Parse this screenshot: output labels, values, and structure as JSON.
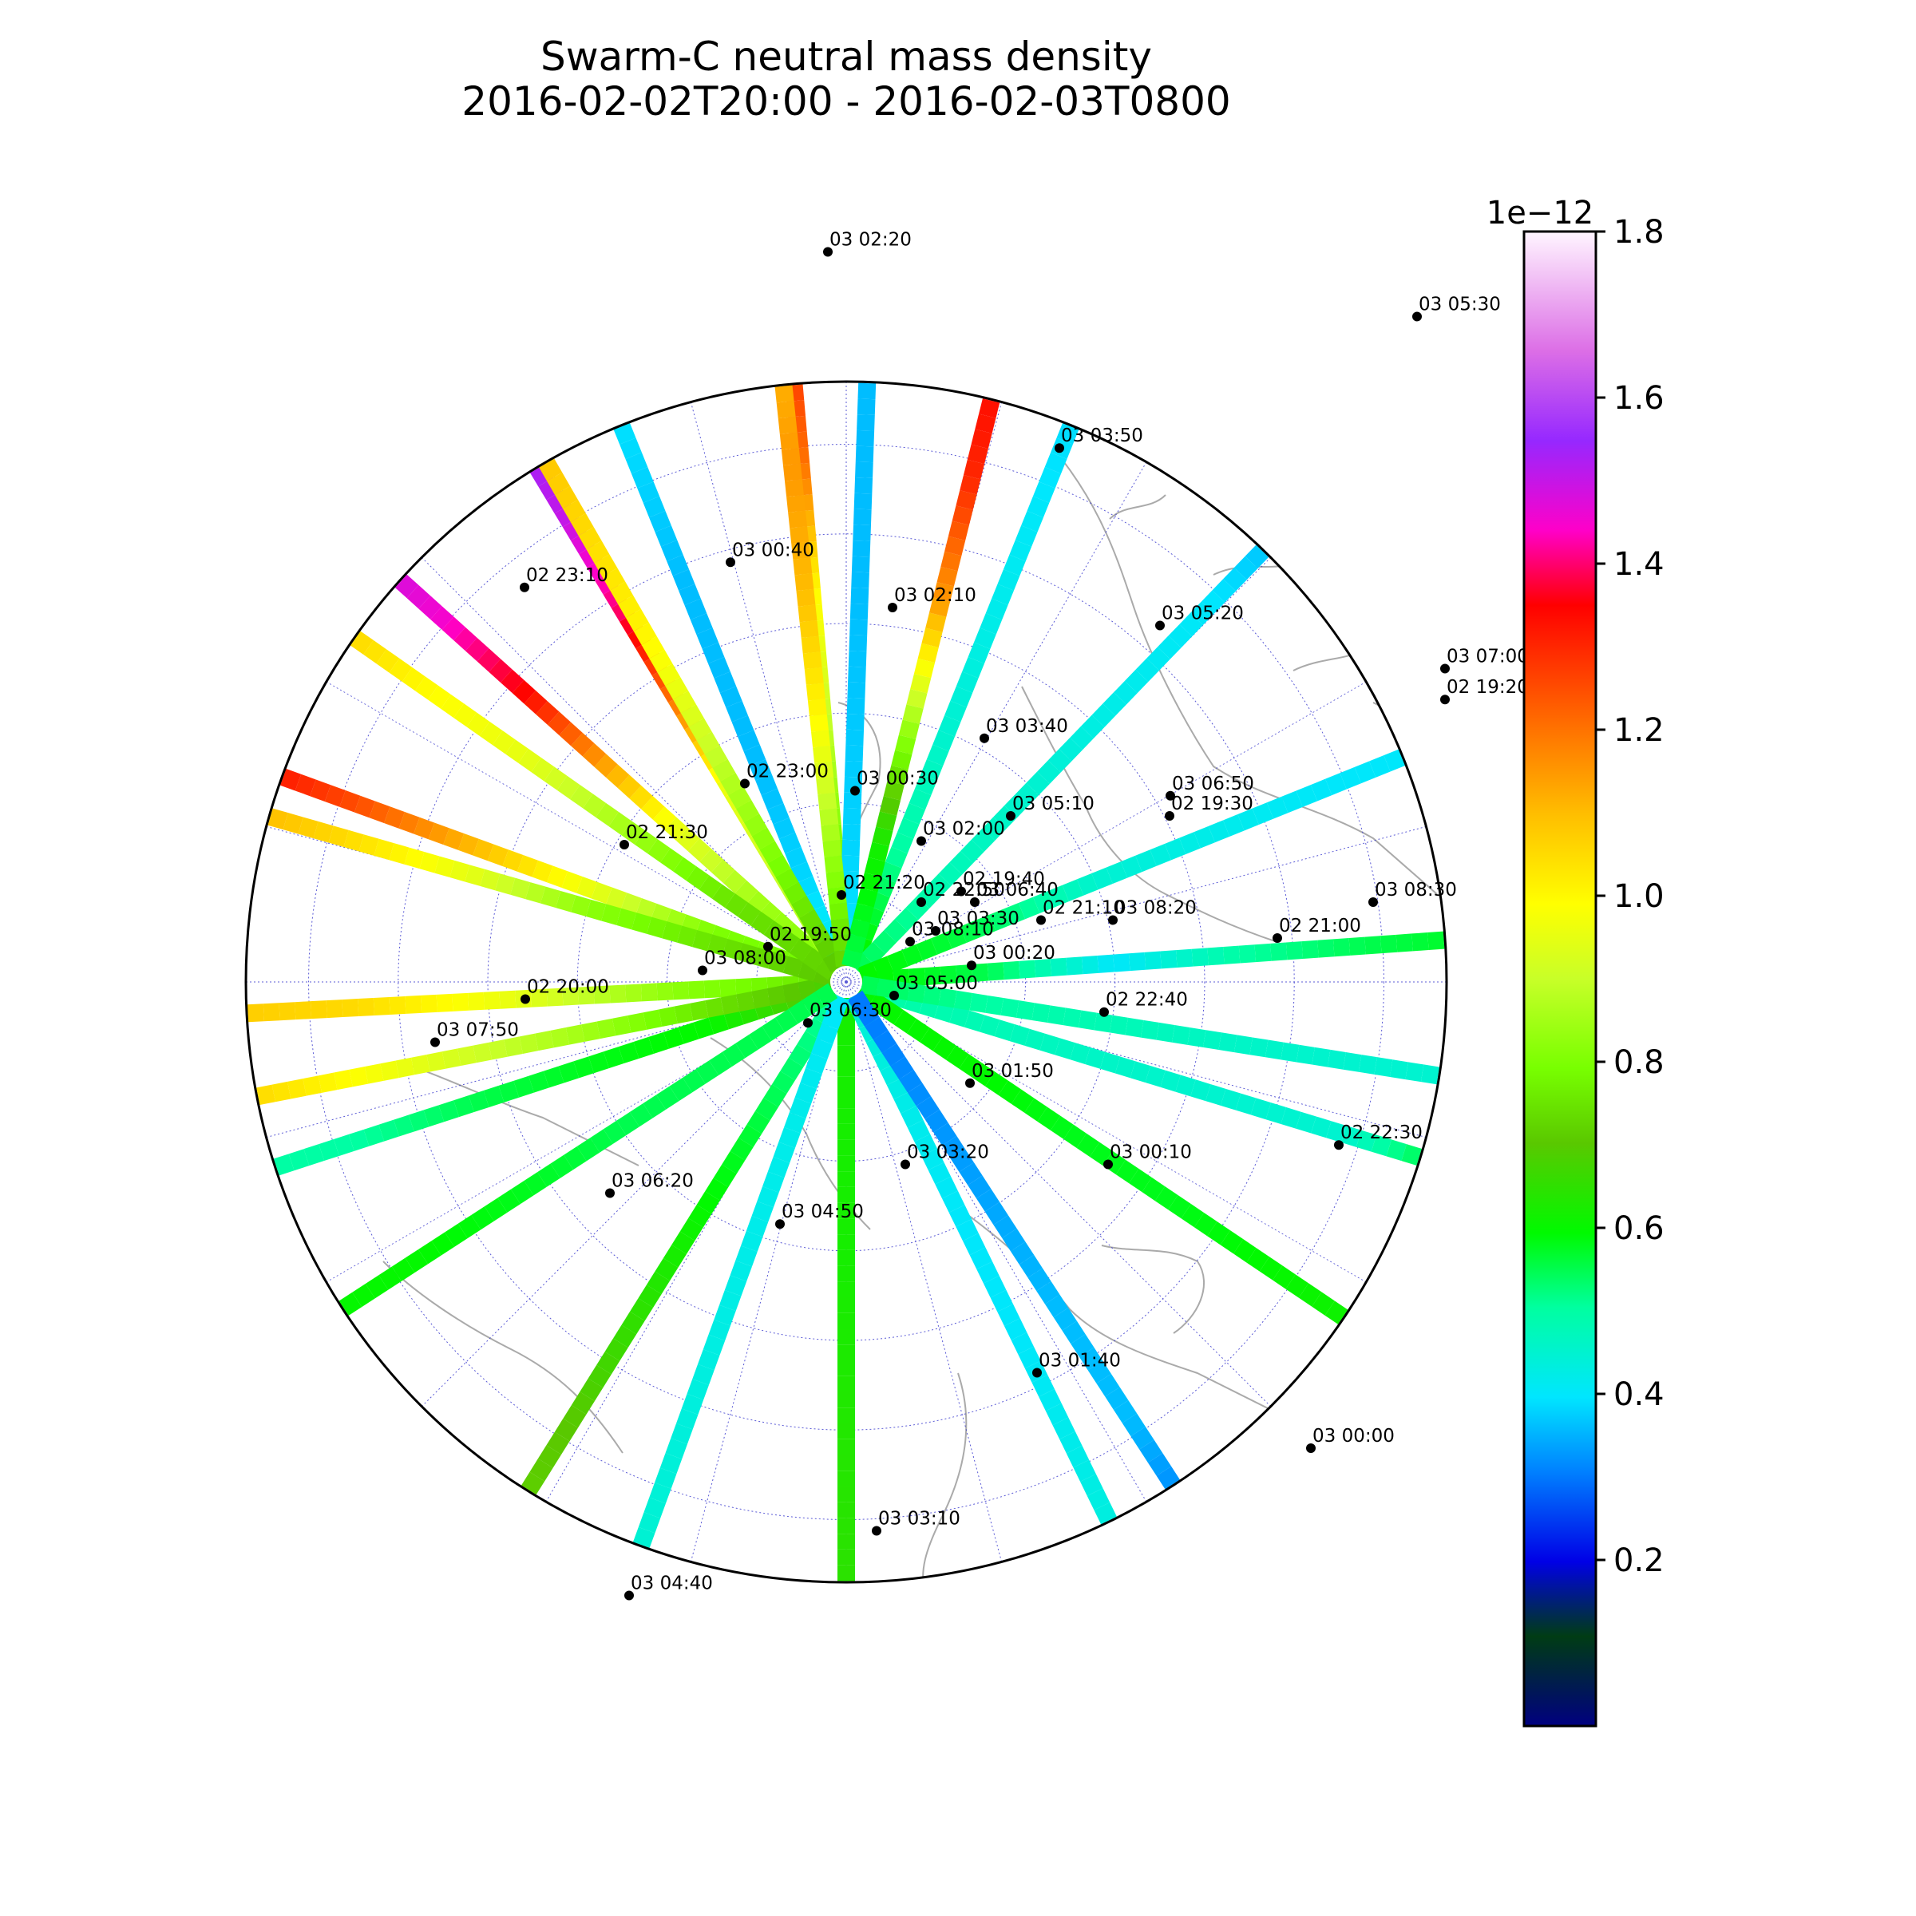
{
  "title_line1": "Swarm-C neutral mass density",
  "title_line2": "2016-02-02T20:00 - 2016-02-03T0800",
  "chart_data": {
    "type": "scatter",
    "projection": "north polar stereographic",
    "colormap": "gist_ncar",
    "color_range": [
      0.0,
      1.8
    ],
    "colorbar_multiplier": "1e−12",
    "colorbar_ticks": [
      "0.2",
      "0.4",
      "0.6",
      "0.8",
      "1.0",
      "1.2",
      "1.4",
      "1.6",
      "1.8"
    ],
    "colorbar_tick_values": [
      0.2,
      0.4,
      0.6,
      0.8,
      1.0,
      1.2,
      1.4,
      1.6,
      1.8
    ],
    "grid": true,
    "coastlines": true,
    "passes": [
      {
        "angle": -93,
        "range": [
          0.0,
          1.0
        ],
        "density": [
          0.75,
          0.82,
          0.95,
          1.05,
          1.08
        ]
      },
      {
        "angle": -70,
        "range": [
          0.0,
          1.0
        ],
        "density": [
          0.78,
          0.8,
          0.95,
          1.1,
          1.25,
          1.35
        ]
      },
      {
        "angle": -48,
        "range": [
          0.0,
          1.0
        ],
        "density": [
          0.8,
          0.85,
          0.95,
          1.15,
          1.35,
          1.45,
          1.5
        ]
      },
      {
        "angle": -31,
        "range": [
          0.0,
          1.0
        ],
        "density": [
          0.85,
          0.9,
          0.95,
          1.2,
          1.4,
          1.5,
          1.55
        ]
      },
      {
        "angle": -22,
        "range": [
          0.0,
          1.0
        ],
        "density": [
          0.42,
          0.38,
          0.36,
          0.36,
          0.36,
          0.38,
          0.4
        ]
      },
      {
        "angle": -5,
        "range": [
          0.0,
          1.0
        ],
        "density": [
          0.75,
          0.8,
          0.9,
          1.0,
          1.2,
          1.3
        ]
      },
      {
        "angle": 2,
        "range": [
          0.0,
          1.0
        ],
        "density": [
          0.4,
          0.38,
          0.37,
          0.36,
          0.36,
          0.36
        ]
      },
      {
        "angle": 22,
        "range": [
          0.0,
          1.0
        ],
        "density": [
          0.62,
          0.5,
          0.45,
          0.42,
          0.4,
          0.38
        ]
      },
      {
        "angle": 44,
        "range": [
          0.0,
          1.0
        ],
        "density": [
          0.55,
          0.48,
          0.45,
          0.42,
          0.4,
          0.35
        ]
      },
      {
        "angle": 68,
        "range": [
          0.0,
          1.0
        ],
        "density": [
          0.6,
          0.55,
          0.45,
          0.42,
          0.4,
          0.4
        ]
      },
      {
        "angle": 86,
        "range": [
          0.0,
          1.0
        ],
        "density": [
          0.6,
          0.55,
          0.4,
          0.5,
          0.55,
          0.58
        ]
      },
      {
        "angle": 107,
        "range": [
          0.0,
          1.0
        ],
        "density": [
          0.5,
          0.48,
          0.46,
          0.45,
          0.45,
          0.6
        ]
      },
      {
        "angle": 124,
        "range": [
          0.0,
          1.0
        ],
        "density": [
          0.6,
          0.6,
          0.58,
          0.58,
          0.6,
          0.62
        ]
      },
      {
        "angle": 99,
        "range": [
          0.0,
          1.0
        ],
        "density": [
          0.55,
          0.5,
          0.48,
          0.46,
          0.45,
          0.45
        ]
      },
      {
        "angle": 252,
        "range": [
          0.0,
          1.0
        ],
        "density": [
          0.72,
          0.6,
          0.58,
          0.55,
          0.5,
          0.5
        ]
      },
      {
        "angle": 259,
        "range": [
          0.0,
          1.0
        ],
        "density": [
          0.68,
          0.75,
          0.85,
          0.92,
          1.0,
          1.08
        ]
      },
      {
        "angle": 286,
        "range": [
          0.0,
          1.0
        ],
        "density": [
          0.7,
          0.75,
          0.82,
          0.95,
          1.05,
          1.12
        ]
      },
      {
        "angle": 305,
        "range": [
          0.0,
          1.0
        ],
        "density": [
          0.72,
          0.75,
          0.85,
          0.95,
          1.0,
          1.08
        ]
      },
      {
        "angle": 330,
        "range": [
          0.0,
          1.0
        ],
        "density": [
          0.7,
          0.8,
          0.9,
          1.0,
          1.05,
          1.1
        ]
      },
      {
        "angle": 354,
        "range": [
          0.0,
          1.0
        ],
        "density": [
          0.72,
          0.85,
          1.0,
          1.1,
          1.15,
          1.1
        ]
      },
      {
        "angle": 14,
        "range": [
          0.0,
          1.0
        ],
        "density": [
          0.55,
          0.62,
          0.85,
          1.15,
          1.3,
          1.35
        ]
      },
      {
        "angle": 212,
        "range": [
          0.0,
          1.0
        ],
        "density": [
          0.5,
          0.55,
          0.6,
          0.65,
          0.7,
          0.72
        ]
      },
      {
        "angle": 180,
        "range": [
          0.0,
          1.0
        ],
        "density": [
          0.62,
          0.62,
          0.62,
          0.63,
          0.64,
          0.65
        ]
      },
      {
        "angle": 154,
        "range": [
          0.0,
          1.0
        ],
        "density": [
          0.45,
          0.42,
          0.4,
          0.4,
          0.42,
          0.44
        ]
      },
      {
        "angle": 147,
        "range": [
          0.0,
          1.0
        ],
        "density": [
          0.3,
          0.32,
          0.34,
          0.36,
          0.36,
          0.3
        ]
      },
      {
        "angle": 200,
        "range": [
          0.0,
          1.0
        ],
        "density": [
          0.4,
          0.42,
          0.42,
          0.43,
          0.44,
          0.45
        ]
      },
      {
        "angle": 237,
        "range": [
          0.0,
          1.0
        ],
        "density": [
          0.55,
          0.55,
          0.55,
          0.58,
          0.6,
          0.6
        ]
      }
    ],
    "time_labels": [
      {
        "text": "03 02:20",
        "pos": [
          0.937,
          -1.025
        ]
      },
      {
        "text": "03 05:30",
        "pos": [
          1.675,
          -0.935
        ]
      },
      {
        "text": "03 03:50",
        "pos": [
          1.227,
          -0.752
        ]
      },
      {
        "text": "03 00:40",
        "pos": [
          0.815,
          -0.593
        ]
      },
      {
        "text": "02 23:10",
        "pos": [
          0.557,
          -0.558
        ]
      },
      {
        "text": "03 02:10",
        "pos": [
          1.018,
          -0.53
        ]
      },
      {
        "text": "03 05:20",
        "pos": [
          1.353,
          -0.505
        ]
      },
      {
        "text": "03 07:00",
        "pos": [
          1.71,
          -0.445
        ]
      },
      {
        "text": "02 19:20",
        "pos": [
          1.71,
          -0.402
        ]
      },
      {
        "text": "03 03:40",
        "pos": [
          1.133,
          -0.348
        ]
      },
      {
        "text": "02 23:00",
        "pos": [
          0.833,
          -0.285
        ]
      },
      {
        "text": "03 00:30",
        "pos": [
          0.971,
          -0.275
        ]
      },
      {
        "text": "03 06:50",
        "pos": [
          1.366,
          -0.268
        ]
      },
      {
        "text": "03 05:10",
        "pos": [
          1.166,
          -0.24
        ]
      },
      {
        "text": "02 19:30",
        "pos": [
          1.365,
          -0.24
        ]
      },
      {
        "text": "03 02:00",
        "pos": [
          1.054,
          -0.205
        ]
      },
      {
        "text": "02 21:30",
        "pos": [
          0.682,
          -0.2
        ]
      },
      {
        "text": "02 21:20",
        "pos": [
          0.954,
          -0.13
        ]
      },
      {
        "text": "02 19:40",
        "pos": [
          1.104,
          -0.135
        ]
      },
      {
        "text": "03 06:40",
        "pos": [
          1.121,
          -0.12
        ]
      },
      {
        "text": "02 22:50",
        "pos": [
          1.054,
          -0.12
        ]
      },
      {
        "text": "03 08:30",
        "pos": [
          1.62,
          -0.12
        ]
      },
      {
        "text": "03 08:20",
        "pos": [
          1.294,
          -0.095
        ]
      },
      {
        "text": "02 21:10",
        "pos": [
          1.204,
          -0.095
        ]
      },
      {
        "text": "03 03:30",
        "pos": [
          1.072,
          -0.08
        ]
      },
      {
        "text": "02 21:00",
        "pos": [
          1.5,
          -0.07
        ]
      },
      {
        "text": "03 08:10",
        "pos": [
          1.04,
          -0.065
        ]
      },
      {
        "text": "02 19:50",
        "pos": [
          0.862,
          -0.058
        ]
      },
      {
        "text": "03 00:20",
        "pos": [
          1.117,
          -0.032
        ]
      },
      {
        "text": "03 08:00",
        "pos": [
          0.78,
          -0.025
        ]
      },
      {
        "text": "03 05:00",
        "pos": [
          1.02,
          0.01
        ]
      },
      {
        "text": "02 20:00",
        "pos": [
          0.558,
          0.015
        ]
      },
      {
        "text": "02 22:40",
        "pos": [
          1.283,
          0.033
        ]
      },
      {
        "text": "03 06:30",
        "pos": [
          0.912,
          0.048
        ]
      },
      {
        "text": "03 07:50",
        "pos": [
          0.445,
          0.075
        ]
      },
      {
        "text": "03 01:50",
        "pos": [
          1.115,
          0.132
        ]
      },
      {
        "text": "02 22:30",
        "pos": [
          1.577,
          0.218
        ]
      },
      {
        "text": "03 03:20",
        "pos": [
          1.034,
          0.245
        ]
      },
      {
        "text": "03 00:10",
        "pos": [
          1.288,
          0.245
        ]
      },
      {
        "text": "03 06:20",
        "pos": [
          0.664,
          0.285
        ]
      },
      {
        "text": "03 04:50",
        "pos": [
          0.877,
          0.328
        ]
      },
      {
        "text": "03 01:40",
        "pos": [
          1.199,
          0.535
        ]
      },
      {
        "text": "03 00:00",
        "pos": [
          1.542,
          0.64
        ]
      },
      {
        "text": "03 03:10",
        "pos": [
          0.998,
          0.755
        ]
      },
      {
        "text": "03 04:40",
        "pos": [
          0.688,
          0.845
        ]
      }
    ]
  }
}
